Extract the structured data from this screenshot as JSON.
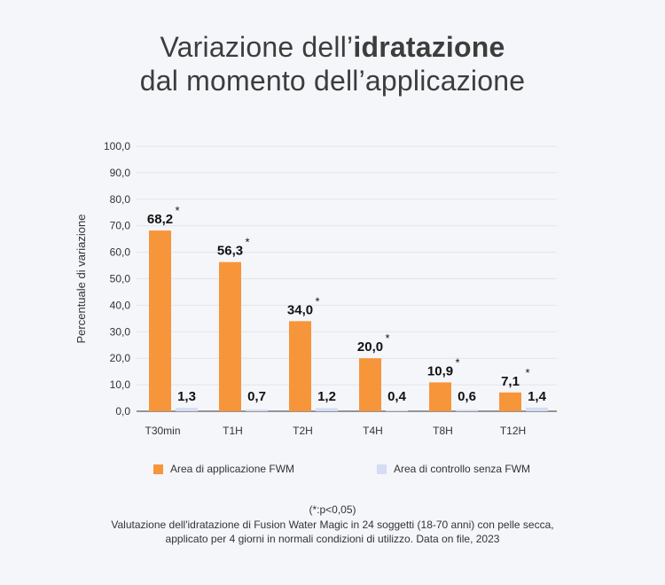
{
  "title": {
    "line1_prefix": "Variazione dell’",
    "line1_bold": "idratazione",
    "line2": "dal momento dell’applicazione"
  },
  "colors": {
    "fwm": "#f7953b",
    "control": "#d6dcf2",
    "grid": "#e2e4ea",
    "axis": "#333333"
  },
  "chart_data": {
    "type": "bar",
    "categories": [
      "T30min",
      "T1H",
      "T2H",
      "T4H",
      "T8H",
      "T12H"
    ],
    "series": [
      {
        "name": "Area di applicazione FWM",
        "values": [
          68.2,
          56.3,
          34.0,
          20.0,
          10.9,
          7.1
        ],
        "labels": [
          "68,2",
          "56,3",
          "34,0",
          "20,0",
          "10,9",
          "7,1"
        ],
        "significant": [
          true,
          true,
          true,
          true,
          true,
          true
        ]
      },
      {
        "name": "Area di controllo senza FWM",
        "values": [
          1.3,
          0.7,
          1.2,
          0.4,
          0.6,
          1.4
        ],
        "labels": [
          "1,3",
          "0,7",
          "1,2",
          "0,4",
          "0,6",
          "1,4"
        ]
      }
    ],
    "ylabel": "Percentuale di variazione",
    "ylim": [
      0,
      100
    ],
    "yticks": [
      "0,0",
      "10,0",
      "20,0",
      "30,0",
      "40,0",
      "50,0",
      "60,0",
      "70,0",
      "80,0",
      "90,0",
      "100,0"
    ],
    "significance_marker": "*",
    "grid": true,
    "legend_position": "bottom"
  },
  "legend": {
    "item1": "Area di applicazione FWM",
    "item2": "Area di controllo senza FWM"
  },
  "footnote": {
    "significance": "(*:p<0,05)",
    "line1": "Valutazione dell'idratazione di Fusion Water Magic in 24 soggetti (18-70 anni) con pelle secca,",
    "line2": "applicato per 4 giorni in normali condizioni di utilizzo. Data on file, 2023"
  }
}
